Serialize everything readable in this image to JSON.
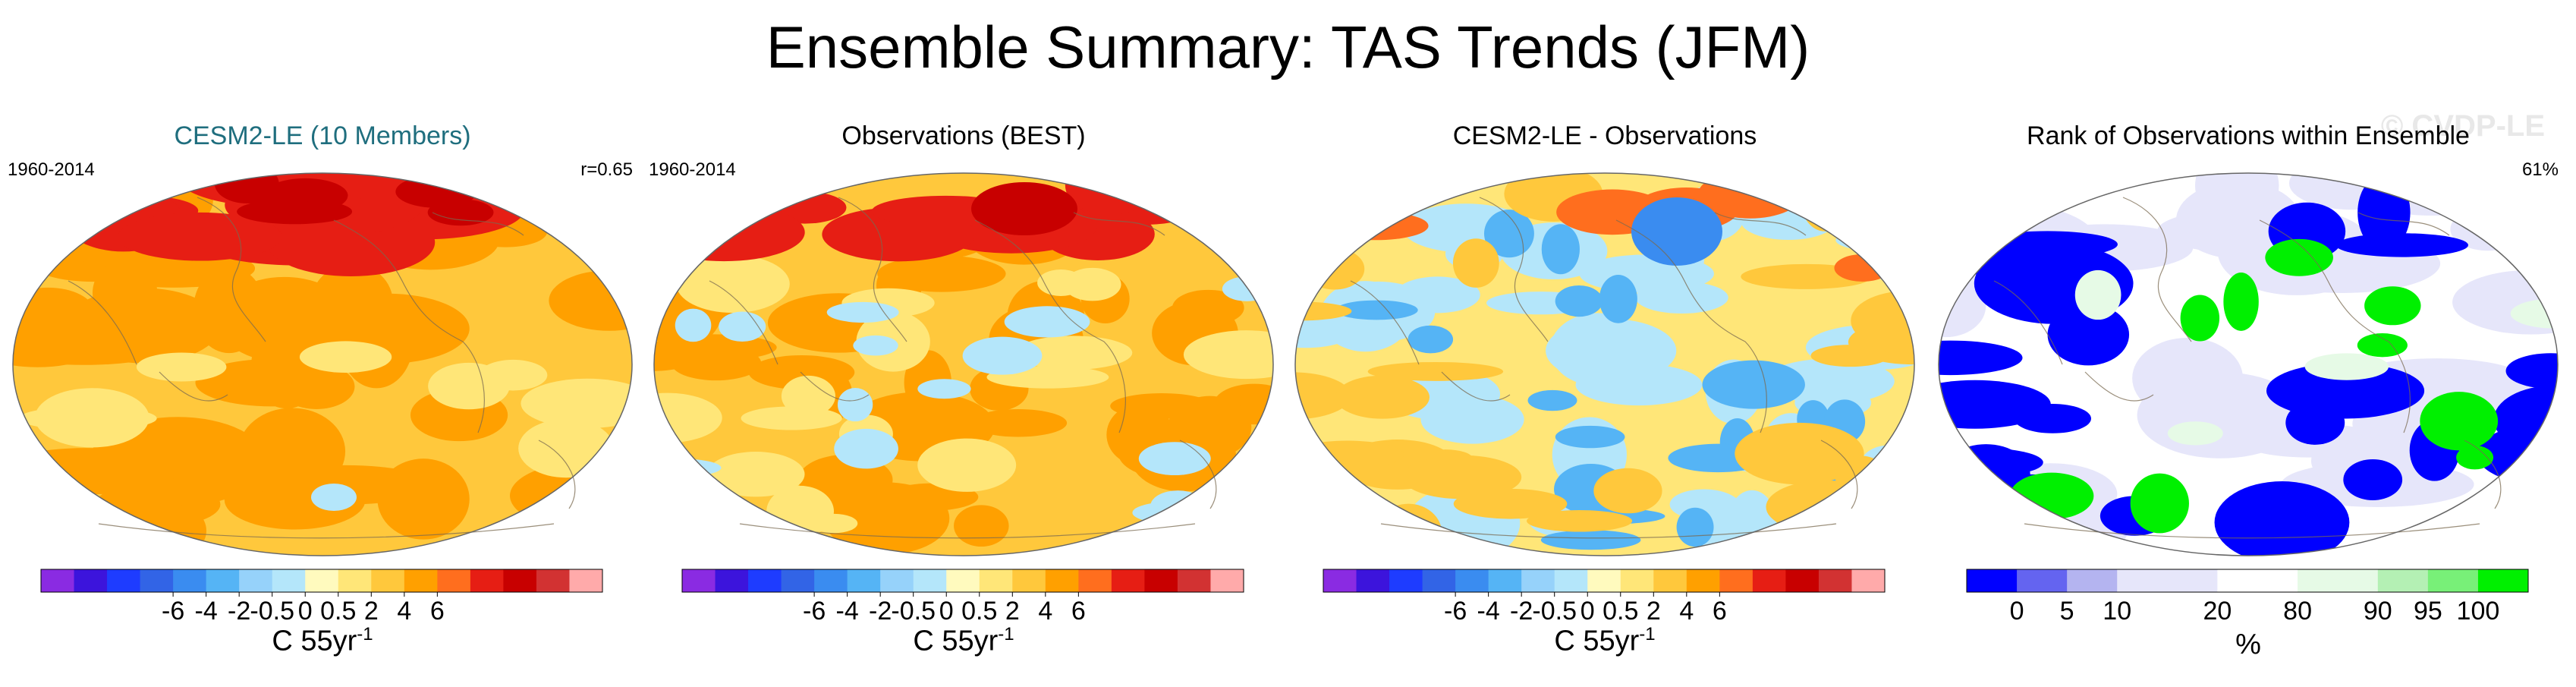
{
  "title": "Ensemble Summary: TAS Trends (JFM)",
  "panels": [
    {
      "title": "CESM2-LE (10 Members)",
      "left": "1960-2014",
      "right": "r=0.65",
      "unit": "C 55yr",
      "unit_exp": "-1"
    },
    {
      "title": "Observations (BEST)",
      "left": "1960-2014",
      "right": "",
      "unit": "C 55yr",
      "unit_exp": "-1"
    },
    {
      "title": "CESM2-LE - Observations",
      "left": "",
      "right": "",
      "unit": "C 55yr",
      "unit_exp": "-1"
    },
    {
      "title": "Rank of Observations within Ensemble",
      "left": "",
      "right": "61%",
      "unit": "%",
      "unit_exp": "",
      "watermark": "© CVDP-LE"
    }
  ],
  "chart_data": [
    {
      "type": "heatmap",
      "title": "CESM2-LE (10 Members)",
      "period": "1960-2014",
      "pattern_correlation": "r=0.65",
      "colorbar": {
        "ticks": [
          "-6",
          "-4",
          "-2",
          "-0.5",
          "0",
          "0.5",
          "2",
          "4",
          "6"
        ],
        "label": "C 55yr-1"
      }
    },
    {
      "type": "heatmap",
      "title": "Observations (BEST)",
      "period": "1960-2014",
      "colorbar": {
        "ticks": [
          "-6",
          "-4",
          "-2",
          "-0.5",
          "0",
          "0.5",
          "2",
          "4",
          "6"
        ],
        "label": "C 55yr-1"
      }
    },
    {
      "type": "heatmap",
      "title": "CESM2-LE - Observations",
      "colorbar": {
        "ticks": [
          "-6",
          "-4",
          "-2",
          "-0.5",
          "0",
          "0.5",
          "2",
          "4",
          "6"
        ],
        "label": "C 55yr-1"
      }
    },
    {
      "type": "heatmap",
      "title": "Rank of Observations within Ensemble",
      "summary": "61%",
      "colorbar": {
        "ticks": [
          "0",
          "5",
          "10",
          "20",
          "80",
          "90",
          "95",
          "100"
        ],
        "label": "%"
      }
    }
  ],
  "colors": {
    "trend_scale": [
      "#8a2be2",
      "#3c14dc",
      "#1e3cff",
      "#3264e6",
      "#3a8cf0",
      "#55b4f5",
      "#96d2fa",
      "#b4e6fa",
      "#fffabe",
      "#ffe678",
      "#ffc83c",
      "#ffa000",
      "#ff6e1e",
      "#e61e14",
      "#c80000",
      "#d23232",
      "#ffaaaa"
    ],
    "rank_scale": [
      "#0000ff",
      "#6464f0",
      "#b4b4f0",
      "#e6e6fa",
      "#ffffff",
      "#e6fae6",
      "#b4f0b4",
      "#78f078",
      "#00f000"
    ]
  }
}
